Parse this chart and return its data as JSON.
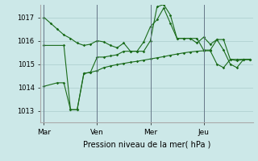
{
  "background_color": "#cce8e8",
  "grid_color": "#aacccc",
  "line_color": "#1a6b1a",
  "xlabel": "Pression niveau de la mer( hPa )",
  "ylim": [
    1012.5,
    1017.55
  ],
  "yticks": [
    1013,
    1014,
    1015,
    1016,
    1017
  ],
  "day_labels": [
    "Mar",
    "Ven",
    "Mer",
    "Jeu"
  ],
  "day_positions": [
    0,
    8,
    16,
    24
  ],
  "series1_x": [
    0,
    1,
    2,
    3,
    4,
    5,
    6,
    7,
    8,
    9,
    10,
    11,
    12,
    13,
    14,
    15,
    16,
    17,
    18,
    19,
    20,
    21,
    22,
    23,
    24,
    25,
    26,
    27,
    28,
    29,
    30,
    31
  ],
  "series1_y": [
    1017.0,
    1016.75,
    1016.5,
    1016.25,
    1016.1,
    1015.9,
    1015.8,
    1015.85,
    1016.0,
    1015.95,
    1015.8,
    1015.7,
    1015.9,
    1015.55,
    1015.55,
    1015.95,
    1016.6,
    1016.9,
    1017.4,
    1016.75,
    1016.1,
    1016.1,
    1016.1,
    1015.9,
    1016.15,
    1015.85,
    1016.05,
    1016.05,
    1015.2,
    1015.15,
    1015.2,
    1015.2
  ],
  "series2_x": [
    0,
    3,
    4,
    5,
    6,
    7,
    8,
    9,
    10,
    11,
    12,
    13,
    14,
    15,
    16,
    17,
    18,
    19,
    20,
    21,
    22,
    23,
    24,
    25,
    26,
    27,
    28,
    29,
    30,
    31
  ],
  "series2_y": [
    1015.8,
    1015.8,
    1013.05,
    1013.05,
    1014.6,
    1014.65,
    1015.3,
    1015.3,
    1015.35,
    1015.4,
    1015.55,
    1015.55,
    1015.55,
    1015.55,
    1016.0,
    1017.45,
    1017.55,
    1017.1,
    1016.1,
    1016.1,
    1016.1,
    1016.1,
    1015.6,
    1015.6,
    1016.05,
    1015.6,
    1015.0,
    1014.85,
    1015.2,
    1015.2
  ],
  "series3_x": [
    0,
    2,
    3,
    4,
    5,
    6,
    7,
    8,
    9,
    10,
    11,
    12,
    13,
    14,
    15,
    16,
    17,
    18,
    19,
    20,
    21,
    22,
    23,
    24,
    25,
    26,
    27,
    28,
    29,
    30,
    31
  ],
  "series3_y": [
    1014.05,
    1014.2,
    1014.2,
    1013.05,
    1013.05,
    1014.6,
    1014.65,
    1014.72,
    1014.85,
    1014.92,
    1014.98,
    1015.03,
    1015.08,
    1015.12,
    1015.17,
    1015.22,
    1015.27,
    1015.32,
    1015.38,
    1015.43,
    1015.48,
    1015.52,
    1015.55,
    1015.57,
    1015.57,
    1015.0,
    1014.85,
    1015.2,
    1015.2,
    1015.2,
    1015.2
  ]
}
